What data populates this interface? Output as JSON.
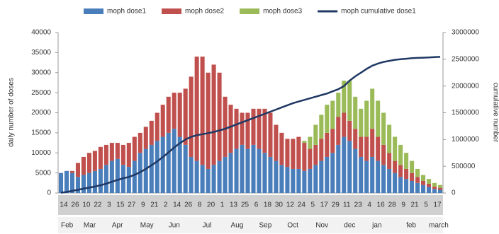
{
  "chart_data": {
    "type": "bar",
    "y_label": "daily number of doses",
    "y2_label": "cumulative number",
    "categories": [
      "14",
      null,
      "26",
      null,
      "10",
      null,
      "22",
      null,
      "3",
      null,
      "15",
      null,
      "27",
      null,
      "9",
      null,
      "21",
      null,
      "2",
      null,
      "14",
      null,
      "26",
      null,
      "8",
      null,
      "20",
      null,
      "1",
      null,
      "13",
      null,
      "25",
      null,
      "6",
      null,
      "18",
      null,
      "30",
      null,
      "12",
      null,
      "24",
      null,
      "5",
      null,
      "17",
      null,
      "29",
      null,
      "11",
      null,
      "23",
      null,
      "4",
      null,
      "16",
      null,
      "28",
      null,
      "9",
      null,
      "21",
      null,
      "5",
      null,
      "17",
      null
    ],
    "month_labels": [
      "Feb",
      null,
      null,
      null,
      "Mar",
      null,
      null,
      null,
      null,
      "Apr",
      null,
      null,
      null,
      null,
      "May",
      null,
      null,
      null,
      null,
      "Jun",
      null,
      null,
      null,
      null,
      null,
      "Jul",
      null,
      null,
      null,
      null,
      "Aug",
      null,
      null,
      null,
      null,
      "Sep",
      null,
      null,
      null,
      null,
      "Oct",
      null,
      null,
      null,
      null,
      "Nov",
      null,
      null,
      null,
      null,
      "dec",
      null,
      null,
      null,
      null,
      "jan",
      null,
      null,
      null,
      null,
      null,
      "feb",
      null,
      null,
      null,
      "march",
      null,
      null
    ],
    "stacked": true,
    "series": [
      {
        "name": "moph dose1",
        "color": "#4a7ebb",
        "type": "bar",
        "values": [
          5000,
          5500,
          5000,
          4000,
          4500,
          5000,
          5500,
          6000,
          7000,
          8000,
          8500,
          7000,
          6500,
          8000,
          10000,
          11000,
          12000,
          13000,
          14000,
          15000,
          16000,
          14000,
          12000,
          9000,
          8000,
          7000,
          6000,
          7000,
          8000,
          9000,
          10000,
          11000,
          12000,
          11000,
          12000,
          11000,
          10000,
          9000,
          8000,
          7000,
          6500,
          6000,
          6000,
          5500,
          6000,
          7000,
          8000,
          9000,
          10000,
          12000,
          14000,
          13000,
          11000,
          9000,
          8000,
          9000,
          8000,
          7000,
          6000,
          5000,
          4000,
          3500,
          3000,
          2500,
          2000,
          1500,
          1000,
          800
        ]
      },
      {
        "name": "moph dose2",
        "color": "#c0504d",
        "type": "bar",
        "values": [
          0,
          0,
          500,
          3500,
          4500,
          5000,
          5000,
          5500,
          5000,
          4500,
          4000,
          5000,
          6000,
          6000,
          5000,
          5500,
          6000,
          7000,
          8000,
          9000,
          9000,
          11000,
          14000,
          20000,
          26000,
          27000,
          24000,
          25000,
          22000,
          15000,
          12000,
          10000,
          8000,
          9000,
          9000,
          10000,
          11000,
          11000,
          9000,
          8000,
          7000,
          7500,
          8000,
          7000,
          5000,
          5000,
          5500,
          6000,
          6000,
          7000,
          6000,
          5000,
          5000,
          5000,
          6000,
          7000,
          6000,
          5000,
          4000,
          3000,
          3000,
          2500,
          2000,
          1500,
          1000,
          800,
          600,
          500
        ]
      },
      {
        "name": "moph dose3",
        "color": "#9bbb59",
        "type": "bar",
        "values": [
          0,
          0,
          0,
          0,
          0,
          0,
          0,
          0,
          0,
          0,
          0,
          0,
          0,
          0,
          0,
          0,
          0,
          0,
          0,
          0,
          0,
          0,
          0,
          0,
          0,
          0,
          0,
          0,
          0,
          0,
          0,
          0,
          0,
          0,
          0,
          0,
          0,
          0,
          0,
          0,
          0,
          0,
          0,
          500,
          3000,
          5000,
          6000,
          7000,
          7000,
          6000,
          8000,
          10000,
          8000,
          7000,
          9000,
          10000,
          9000,
          8000,
          7000,
          6000,
          5000,
          4000,
          3000,
          2000,
          1500,
          1200,
          900,
          700
        ]
      },
      {
        "name": "moph cumulative dose1",
        "color": "#1f3864",
        "type": "line",
        "axis": "y2",
        "values": [
          5000,
          20000,
          40000,
          60000,
          80000,
          100000,
          120000,
          145000,
          175000,
          210000,
          245000,
          275000,
          300000,
          340000,
          390000,
          450000,
          520000,
          590000,
          670000,
          760000,
          850000,
          930000,
          1000000,
          1050000,
          1080000,
          1100000,
          1120000,
          1140000,
          1170000,
          1200000,
          1240000,
          1280000,
          1320000,
          1360000,
          1400000,
          1440000,
          1480000,
          1520000,
          1560000,
          1600000,
          1640000,
          1680000,
          1710000,
          1740000,
          1770000,
          1800000,
          1830000,
          1860000,
          1900000,
          1940000,
          2000000,
          2100000,
          2180000,
          2250000,
          2320000,
          2380000,
          2420000,
          2450000,
          2470000,
          2490000,
          2500000,
          2510000,
          2520000,
          2525000,
          2530000,
          2535000,
          2540000,
          2545000
        ]
      }
    ],
    "ylim": [
      0,
      40000
    ],
    "yticks": [
      0,
      5000,
      10000,
      15000,
      20000,
      25000,
      30000,
      35000,
      40000
    ],
    "y2lim": [
      0,
      3000000
    ],
    "y2ticks": [
      0,
      500000,
      1000000,
      1500000,
      2000000,
      2500000,
      3000000
    ],
    "grid": false,
    "legend": "top"
  }
}
